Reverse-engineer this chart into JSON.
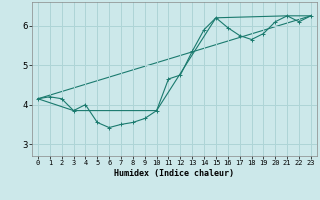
{
  "xlabel": "Humidex (Indice chaleur)",
  "ylabel": "",
  "bg_color": "#cce8ea",
  "grid_color": "#aed4d6",
  "line_color": "#1a7a6e",
  "xlim": [
    -0.5,
    23.5
  ],
  "ylim": [
    2.7,
    6.6
  ],
  "yticks": [
    3,
    4,
    5,
    6
  ],
  "xticks": [
    0,
    1,
    2,
    3,
    4,
    5,
    6,
    7,
    8,
    9,
    10,
    11,
    12,
    13,
    14,
    15,
    16,
    17,
    18,
    19,
    20,
    21,
    22,
    23
  ],
  "line1_x": [
    0,
    1,
    2,
    3,
    4,
    5,
    6,
    7,
    8,
    9,
    10,
    11,
    12,
    13,
    14,
    15,
    16,
    17,
    18,
    19,
    20,
    21,
    22,
    23
  ],
  "line1_y": [
    4.15,
    4.2,
    4.15,
    3.85,
    4.0,
    3.55,
    3.42,
    3.5,
    3.55,
    3.65,
    3.85,
    4.65,
    4.75,
    5.35,
    5.9,
    6.2,
    5.95,
    5.75,
    5.65,
    5.8,
    6.1,
    6.25,
    6.1,
    6.25
  ],
  "line2_x": [
    0,
    3,
    10,
    15,
    21,
    23
  ],
  "line2_y": [
    4.15,
    3.85,
    3.85,
    6.2,
    6.25,
    6.25
  ],
  "line3_x": [
    0,
    23
  ],
  "line3_y": [
    4.15,
    6.25
  ]
}
